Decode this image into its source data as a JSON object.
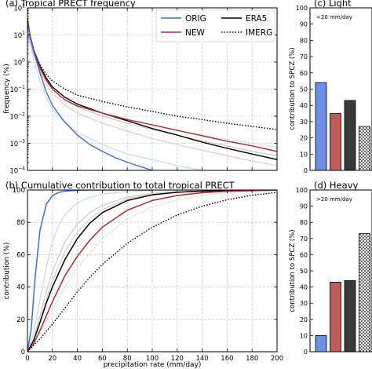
{
  "colors": {
    "orig": "#3a6fd8",
    "new": "#b02a2a",
    "era5": "#000000",
    "imerg": "#000000",
    "orig_light": "#c9d7f2",
    "new_light": "#e9c7c7",
    "era5_light": "#c8c8c8",
    "bar_orig": "#6d8fe8",
    "bar_new": "#c25a5a",
    "bar_era5": "#3a3a3a"
  },
  "chart_data": [
    {
      "id": "a",
      "type": "line",
      "title": "(a) Tropical PRECT frequency",
      "xlabel": "",
      "ylabel": "frequency (%)",
      "xlim": [
        0,
        200
      ],
      "yscale": "log",
      "ylim": [
        0.0001,
        100
      ],
      "grid": true,
      "legend_position": "top-right",
      "x_ticks": [
        0,
        20,
        40,
        60,
        80,
        100,
        120,
        140,
        160,
        180,
        200
      ],
      "y_tick_labels": [
        {
          "value": 100,
          "base": "10",
          "exp": "2"
        },
        {
          "value": 10,
          "base": "10",
          "exp": "1"
        },
        {
          "value": 1,
          "base": "10",
          "exp": "0"
        },
        {
          "value": 0.1,
          "base": "10",
          "exp": "−1"
        },
        {
          "value": 0.01,
          "base": "10",
          "exp": "−2"
        },
        {
          "value": 0.001,
          "base": "10",
          "exp": "−3"
        },
        {
          "value": 0.0001,
          "base": "10",
          "exp": "−4"
        }
      ],
      "legend": [
        {
          "name": "ORIG",
          "color_key": "orig",
          "dash": "solid"
        },
        {
          "name": "NEW",
          "color_key": "new",
          "dash": "solid"
        },
        {
          "name": "ERA5",
          "color_key": "era5",
          "dash": "solid"
        },
        {
          "name": "IMERG",
          "color_key": "imerg",
          "dash": "dotted"
        }
      ],
      "series": [
        {
          "key": "new_light",
          "color_key": "new_light",
          "dash": "solid",
          "width": 1.2,
          "x": [
            0,
            2,
            5,
            10,
            15,
            20,
            30,
            40,
            60,
            80,
            100,
            120,
            140,
            160,
            180,
            200
          ],
          "y": [
            20,
            6,
            1.8,
            0.45,
            0.16,
            0.07,
            0.025,
            0.013,
            0.0055,
            0.0028,
            0.0015,
            0.0009,
            0.00055,
            0.00035,
            0.00022,
            0.00015
          ]
        },
        {
          "key": "era5_light",
          "color_key": "era5_light",
          "dash": "solid",
          "width": 1.2,
          "x": [
            0,
            2,
            5,
            10,
            15,
            20,
            30,
            40,
            60,
            80,
            100,
            120,
            140,
            160,
            180,
            200
          ],
          "y": [
            30,
            8,
            2.2,
            0.5,
            0.2,
            0.1,
            0.04,
            0.022,
            0.01,
            0.0055,
            0.0032,
            0.002,
            0.0012,
            0.0008,
            0.0005,
            0.00035
          ]
        },
        {
          "key": "orig_light",
          "color_key": "orig_light",
          "dash": "solid",
          "width": 1.2,
          "x": [
            0,
            2,
            5,
            10,
            15,
            20,
            30,
            40,
            60,
            80,
            100,
            120,
            140
          ],
          "y": [
            18,
            5,
            1.2,
            0.2,
            0.05,
            0.018,
            0.006,
            0.0025,
            0.0009,
            0.0004,
            0.00025,
            0.00015,
            0.0001
          ]
        },
        {
          "key": "imerg_light",
          "color_key": "era5_light",
          "dash": "dotted",
          "width": 1.2,
          "x": [
            0,
            2,
            5,
            10,
            15,
            20,
            30,
            40,
            60,
            80,
            100,
            120,
            140,
            160,
            180,
            200
          ],
          "y": [
            20,
            6,
            2,
            0.6,
            0.25,
            0.12,
            0.05,
            0.028,
            0.013,
            0.0075,
            0.0045,
            0.003,
            0.002,
            0.0014,
            0.001,
            0.0007
          ]
        },
        {
          "name": "IMERG",
          "key": "imerg",
          "color_key": "imerg",
          "dash": "dotted",
          "width": 1.4,
          "x": [
            0,
            2,
            5,
            10,
            15,
            20,
            30,
            40,
            60,
            80,
            100,
            120,
            140,
            160,
            180,
            200
          ],
          "y": [
            28,
            8,
            2.5,
            0.8,
            0.35,
            0.2,
            0.1,
            0.06,
            0.035,
            0.022,
            0.015,
            0.01,
            0.0075,
            0.0055,
            0.0042,
            0.0032
          ]
        },
        {
          "name": "ERA5",
          "key": "era5",
          "color_key": "era5",
          "dash": "solid",
          "width": 1.4,
          "x": [
            0,
            2,
            5,
            10,
            15,
            20,
            30,
            40,
            60,
            80,
            100,
            120,
            140,
            160,
            180,
            200
          ],
          "y": [
            40,
            10,
            2.8,
            0.7,
            0.26,
            0.12,
            0.05,
            0.028,
            0.013,
            0.0068,
            0.0035,
            0.002,
            0.0011,
            0.00065,
            0.0004,
            0.00025
          ]
        },
        {
          "name": "NEW",
          "key": "new",
          "color_key": "new",
          "dash": "solid",
          "width": 1.4,
          "x": [
            0,
            2,
            5,
            10,
            15,
            20,
            30,
            40,
            60,
            80,
            100,
            120,
            140,
            160,
            180,
            200
          ],
          "y": [
            35,
            10,
            2.5,
            0.6,
            0.22,
            0.1,
            0.04,
            0.024,
            0.013,
            0.0075,
            0.0048,
            0.003,
            0.0019,
            0.0012,
            0.0008,
            0.0005
          ]
        },
        {
          "name": "ORIG",
          "key": "orig",
          "color_key": "orig",
          "dash": "solid",
          "width": 1.4,
          "x": [
            0,
            2,
            5,
            10,
            15,
            20,
            25,
            30,
            40,
            50,
            60,
            70,
            80,
            90,
            100
          ],
          "y": [
            30,
            9,
            2.5,
            0.4,
            0.08,
            0.025,
            0.012,
            0.006,
            0.002,
            0.0009,
            0.0005,
            0.0003,
            0.0002,
            0.00014,
            0.0001
          ]
        }
      ]
    },
    {
      "id": "b",
      "type": "line",
      "title": "(b) Cumulative contribution to total tropical PRECT",
      "xlabel": "precipitation rate (mm/day)",
      "ylabel": "contribution (%)",
      "xlim": [
        0,
        200
      ],
      "ylim": [
        0,
        100
      ],
      "grid": true,
      "x_ticks": [
        0,
        20,
        40,
        60,
        80,
        100,
        120,
        140,
        160,
        180,
        200
      ],
      "y_ticks": [
        0,
        20,
        40,
        60,
        80,
        100
      ],
      "series": [
        {
          "key": "orig_light",
          "color_key": "orig_light",
          "dash": "solid",
          "width": 1.2,
          "x": [
            0,
            5,
            10,
            15,
            20,
            25,
            30,
            40,
            50,
            60,
            80,
            100,
            120,
            160,
            200
          ],
          "y": [
            0,
            12,
            32,
            52,
            68,
            78,
            85,
            92,
            95.5,
            97.5,
            99,
            99.6,
            99.8,
            100,
            100
          ]
        },
        {
          "key": "era5_light",
          "color_key": "era5_light",
          "dash": "solid",
          "width": 1.2,
          "x": [
            0,
            5,
            10,
            15,
            20,
            30,
            40,
            50,
            60,
            80,
            100,
            120,
            140,
            160,
            180,
            200
          ],
          "y": [
            0,
            8,
            22,
            37,
            50,
            68,
            79,
            86,
            90.5,
            95.5,
            97.8,
            98.9,
            99.5,
            99.8,
            99.9,
            100
          ]
        },
        {
          "key": "new_light",
          "color_key": "new_light",
          "dash": "solid",
          "width": 1.2,
          "x": [
            0,
            5,
            10,
            15,
            20,
            30,
            40,
            50,
            60,
            80,
            100,
            120,
            140,
            160,
            180,
            200
          ],
          "y": [
            0,
            7,
            19,
            32,
            44,
            62,
            74,
            82,
            88,
            94.5,
            97.5,
            98.8,
            99.5,
            99.8,
            99.9,
            100
          ]
        },
        {
          "key": "imerg_light",
          "color_key": "era5_light",
          "dash": "dotted",
          "width": 1.2,
          "x": [
            0,
            10,
            20,
            30,
            40,
            60,
            80,
            100,
            120,
            140,
            160,
            180,
            200
          ],
          "y": [
            0,
            12,
            26,
            40,
            52,
            70,
            82,
            89.5,
            94,
            96.8,
            98.3,
            99.2,
            99.6
          ]
        },
        {
          "name": "ORIG",
          "key": "orig",
          "color_key": "orig",
          "dash": "solid",
          "width": 1.5,
          "x": [
            0,
            3,
            6,
            10,
            15,
            20,
            25,
            30,
            40,
            50,
            60,
            80,
            100
          ],
          "y": [
            0,
            14,
            45,
            75,
            91,
            96.5,
            98.5,
            99.3,
            99.8,
            100,
            100,
            100,
            100
          ]
        },
        {
          "name": "ERA5",
          "key": "era5",
          "color_key": "era5",
          "dash": "solid",
          "width": 1.5,
          "x": [
            0,
            5,
            10,
            15,
            20,
            30,
            40,
            50,
            60,
            80,
            100,
            120,
            140,
            160,
            180,
            200
          ],
          "y": [
            0,
            7,
            18,
            30,
            40,
            57,
            70,
            79.5,
            86,
            93.5,
            97,
            98.6,
            99.3,
            99.7,
            99.9,
            100
          ]
        },
        {
          "name": "NEW",
          "key": "new",
          "color_key": "new",
          "dash": "solid",
          "width": 1.5,
          "x": [
            0,
            5,
            10,
            15,
            20,
            30,
            40,
            50,
            60,
            80,
            100,
            120,
            140,
            160,
            180,
            200
          ],
          "y": [
            0,
            5,
            13,
            22,
            31,
            47,
            59,
            69,
            77,
            87.5,
            93.5,
            96.6,
            98.3,
            99.2,
            99.6,
            100
          ]
        },
        {
          "name": "IMERG",
          "key": "imerg",
          "color_key": "imerg",
          "dash": "dotted",
          "width": 1.4,
          "x": [
            0,
            10,
            20,
            30,
            40,
            50,
            60,
            80,
            100,
            120,
            140,
            160,
            180,
            200
          ],
          "y": [
            0,
            8,
            17,
            27,
            37,
            46,
            54,
            67,
            77,
            84.5,
            90,
            94,
            96.7,
            98.5
          ]
        }
      ]
    },
    {
      "id": "c",
      "type": "bar",
      "title": "(c) Light",
      "annotation": "<20 mm/day",
      "ylabel": "contribution to SPCZ (%)",
      "ylim": [
        0,
        100
      ],
      "y_ticks": [
        0,
        10,
        20,
        30,
        40,
        50,
        60,
        70,
        80,
        90,
        100
      ],
      "categories": [
        "ORIG",
        "NEW",
        "ERA5",
        "IMERG"
      ],
      "values": [
        54,
        35,
        43,
        27
      ],
      "bar_color_keys": [
        "bar_orig",
        "bar_new",
        "bar_era5",
        "pattern"
      ]
    },
    {
      "id": "d",
      "type": "bar",
      "title": "(d) Heavy",
      "annotation": ">20 mm/day",
      "ylabel": "contribution to SPCZ (%)",
      "ylim": [
        0,
        100
      ],
      "y_ticks": [
        0,
        10,
        20,
        30,
        40,
        50,
        60,
        70,
        80,
        90,
        100
      ],
      "categories": [
        "ORIG",
        "NEW",
        "ERA5",
        "IMERG"
      ],
      "values": [
        10,
        43,
        44,
        73
      ],
      "bar_color_keys": [
        "bar_orig",
        "bar_new",
        "bar_era5",
        "pattern"
      ]
    }
  ]
}
